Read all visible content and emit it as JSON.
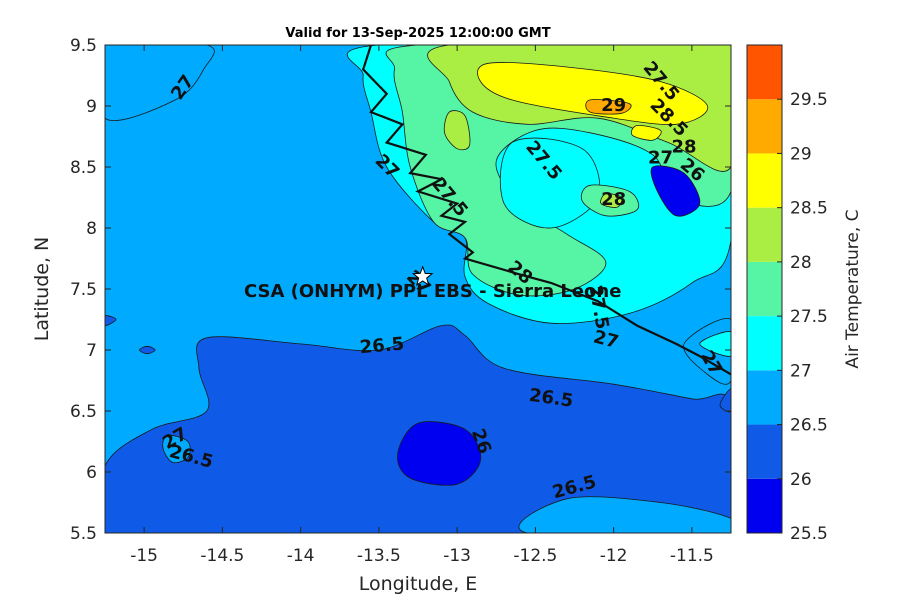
{
  "title": "Valid for 13-Sep-2025 12:00:00 GMT",
  "chart_data": {
    "type": "heatmap",
    "subtype": "filled-contour-map",
    "title": "Valid for 13-Sep-2025 12:00:00 GMT",
    "xlabel": "Longitude, E",
    "ylabel": "Latitude, N",
    "xlim": [
      -15.25,
      -11.25
    ],
    "ylim": [
      5.5,
      9.5
    ],
    "xticks": [
      -15,
      -14.5,
      -14,
      -13.5,
      -13,
      -12.5,
      -12,
      -11.5
    ],
    "yticks": [
      5.5,
      6,
      6.5,
      7,
      7.5,
      8,
      8.5,
      9,
      9.5
    ],
    "colorbar": {
      "label": "Air Temperature, C",
      "ticks": [
        25.5,
        26,
        26.5,
        27,
        27.5,
        28,
        28.5,
        29,
        29.5
      ],
      "colors": [
        "#0000f0",
        "#0f5ae6",
        "#00aaff",
        "#00ffff",
        "#55f5a5",
        "#aaee44",
        "#ffff00",
        "#ffaa00",
        "#ff5500"
      ]
    },
    "background_level": 26.75,
    "regions": [
      {
        "level": 26.25,
        "points": [
          [
            -14.6,
            7.1
          ],
          [
            -14.0,
            7.05
          ],
          [
            -13.5,
            7.0
          ],
          [
            -13.1,
            7.2
          ],
          [
            -12.95,
            7.12
          ],
          [
            -12.7,
            6.85
          ],
          [
            -12.0,
            6.72
          ],
          [
            -11.5,
            6.6
          ],
          [
            -11.25,
            6.55
          ],
          [
            -11.25,
            5.5
          ],
          [
            -15.25,
            5.5
          ],
          [
            -15.25,
            6.05
          ],
          [
            -14.95,
            6.35
          ],
          [
            -14.6,
            6.5
          ],
          [
            -14.65,
            6.85
          ]
        ]
      },
      {
        "level": 26.75,
        "points": [
          [
            -14.85,
            6.3
          ],
          [
            -14.72,
            6.25
          ],
          [
            -14.72,
            6.12
          ],
          [
            -14.82,
            6.08
          ],
          [
            -14.88,
            6.2
          ]
        ]
      },
      {
        "level": 25.75,
        "points": [
          [
            -13.25,
            6.4
          ],
          [
            -12.95,
            6.35
          ],
          [
            -12.85,
            6.1
          ],
          [
            -13.0,
            5.9
          ],
          [
            -13.3,
            5.95
          ],
          [
            -13.38,
            6.15
          ]
        ]
      },
      {
        "level": 26.75,
        "points": [
          [
            -12.55,
            5.5
          ],
          [
            -11.25,
            5.5
          ],
          [
            -11.25,
            5.62
          ],
          [
            -11.7,
            5.75
          ],
          [
            -12.3,
            5.78
          ]
        ]
      },
      {
        "level": 26.75,
        "points": [
          [
            -15.25,
            9.5
          ],
          [
            -14.6,
            9.5
          ],
          [
            -14.62,
            9.3
          ],
          [
            -14.8,
            9.05
          ],
          [
            -15.25,
            8.9
          ]
        ]
      },
      {
        "level": 27.25,
        "points": [
          [
            -13.5,
            9.5
          ],
          [
            -11.25,
            9.5
          ],
          [
            -11.25,
            7.9
          ],
          [
            -11.5,
            7.55
          ],
          [
            -11.9,
            7.3
          ],
          [
            -12.4,
            7.22
          ],
          [
            -12.8,
            7.38
          ],
          [
            -12.95,
            7.6
          ],
          [
            -12.95,
            7.92
          ],
          [
            -13.15,
            8.05
          ],
          [
            -13.45,
            8.5
          ],
          [
            -13.55,
            8.95
          ],
          [
            -13.6,
            9.25
          ]
        ]
      },
      {
        "level": 26.75,
        "points": [
          [
            -11.25,
            7.25
          ],
          [
            -11.55,
            7.05
          ],
          [
            -11.4,
            6.8
          ],
          [
            -11.25,
            6.75
          ]
        ]
      },
      {
        "level": 26.25,
        "points": [
          [
            -11.25,
            6.68
          ],
          [
            -11.32,
            6.55
          ],
          [
            -11.25,
            6.5
          ]
        ]
      },
      {
        "level": 27.75,
        "points": [
          [
            -13.25,
            9.5
          ],
          [
            -11.25,
            9.5
          ],
          [
            -11.25,
            8.3
          ],
          [
            -11.6,
            8.25
          ],
          [
            -11.75,
            8.6
          ],
          [
            -12.15,
            8.78
          ],
          [
            -12.5,
            8.8
          ],
          [
            -12.75,
            8.55
          ],
          [
            -12.6,
            8.2
          ],
          [
            -12.3,
            7.95
          ],
          [
            -12.05,
            7.72
          ],
          [
            -12.25,
            7.5
          ],
          [
            -12.6,
            7.45
          ],
          [
            -12.9,
            7.62
          ],
          [
            -12.95,
            7.92
          ],
          [
            -13.15,
            8.05
          ],
          [
            -13.3,
            8.5
          ],
          [
            -13.35,
            8.95
          ],
          [
            -13.4,
            9.3
          ]
        ]
      },
      {
        "level": 27.25,
        "points": [
          [
            -12.65,
            8.7
          ],
          [
            -12.2,
            8.65
          ],
          [
            -12.1,
            8.25
          ],
          [
            -12.4,
            8.0
          ],
          [
            -12.7,
            8.2
          ]
        ]
      },
      {
        "level": 28.25,
        "points": [
          [
            -13.05,
            9.5
          ],
          [
            -11.25,
            9.5
          ],
          [
            -11.25,
            8.5
          ],
          [
            -11.65,
            8.7
          ],
          [
            -12.1,
            8.9
          ],
          [
            -12.55,
            8.85
          ],
          [
            -12.9,
            8.95
          ],
          [
            -13.05,
            9.2
          ]
        ]
      },
      {
        "level": 27.75,
        "points": [
          [
            -12.15,
            8.35
          ],
          [
            -11.9,
            8.3
          ],
          [
            -11.85,
            8.15
          ],
          [
            -12.05,
            8.1
          ],
          [
            -12.2,
            8.22
          ]
        ]
      },
      {
        "level": 28.25,
        "points": [
          [
            -12.05,
            8.28
          ],
          [
            -11.95,
            8.25
          ],
          [
            -11.98,
            8.17
          ],
          [
            -12.08,
            8.2
          ]
        ]
      },
      {
        "level": 28.25,
        "points": [
          [
            -13.05,
            8.95
          ],
          [
            -12.95,
            8.92
          ],
          [
            -12.92,
            8.68
          ],
          [
            -13.0,
            8.65
          ],
          [
            -13.08,
            8.78
          ]
        ]
      },
      {
        "level": 28.75,
        "points": [
          [
            -12.8,
            9.35
          ],
          [
            -12.3,
            9.32
          ],
          [
            -11.7,
            9.2
          ],
          [
            -11.4,
            9.0
          ],
          [
            -11.6,
            8.85
          ],
          [
            -12.1,
            8.92
          ],
          [
            -12.65,
            9.05
          ],
          [
            -12.85,
            9.2
          ]
        ]
      },
      {
        "level": 29.25,
        "points": [
          [
            -12.15,
            9.05
          ],
          [
            -11.9,
            9.02
          ],
          [
            -11.95,
            8.94
          ],
          [
            -12.15,
            8.95
          ]
        ]
      },
      {
        "level": 28.75,
        "points": [
          [
            -11.85,
            8.84
          ],
          [
            -11.7,
            8.8
          ],
          [
            -11.75,
            8.72
          ],
          [
            -11.88,
            8.76
          ]
        ]
      },
      {
        "level": 25.75,
        "points": [
          [
            -11.75,
            8.5
          ],
          [
            -11.55,
            8.45
          ],
          [
            -11.45,
            8.2
          ],
          [
            -11.6,
            8.1
          ],
          [
            -11.72,
            8.3
          ]
        ]
      },
      {
        "level": 27.25,
        "points": [
          [
            -11.25,
            7.15
          ],
          [
            -11.45,
            7.05
          ],
          [
            -11.25,
            6.95
          ]
        ]
      },
      {
        "level": 26.25,
        "points": [
          [
            -15.25,
            7.28
          ],
          [
            -15.18,
            7.25
          ],
          [
            -15.25,
            7.2
          ]
        ]
      },
      {
        "level": 26.25,
        "points": [
          [
            -14.98,
            7.03
          ],
          [
            -14.93,
            7.0
          ],
          [
            -14.98,
            6.97
          ],
          [
            -15.03,
            7.0
          ]
        ]
      }
    ],
    "contour_labels": [
      {
        "lon": -14.75,
        "lat": 9.15,
        "text": "27",
        "angle": -55
      },
      {
        "lon": -14.8,
        "lat": 6.27,
        "text": "27",
        "angle": -30
      },
      {
        "lon": -14.7,
        "lat": 6.12,
        "text": "26.5",
        "angle": 15
      },
      {
        "lon": -13.48,
        "lat": 7.03,
        "text": "26.5",
        "angle": -5
      },
      {
        "lon": -12.4,
        "lat": 6.6,
        "text": "26.5",
        "angle": 8
      },
      {
        "lon": -12.25,
        "lat": 5.87,
        "text": "26.5",
        "angle": -15
      },
      {
        "lon": -12.85,
        "lat": 6.25,
        "text": "26",
        "angle": 70
      },
      {
        "lon": -13.25,
        "lat": 7.55,
        "text": "27",
        "angle": 45
      },
      {
        "lon": -12.0,
        "lat": 8.23,
        "text": "28",
        "angle": 0
      },
      {
        "lon": -12.45,
        "lat": 8.55,
        "text": "27.5",
        "angle": 50
      },
      {
        "lon": -12.0,
        "lat": 9.0,
        "text": "29",
        "angle": 0
      },
      {
        "lon": -11.7,
        "lat": 9.2,
        "text": "27.5",
        "angle": 50
      },
      {
        "lon": -11.65,
        "lat": 8.9,
        "text": "28.5",
        "angle": 45
      },
      {
        "lon": -11.55,
        "lat": 8.66,
        "text": "28",
        "angle": 0
      },
      {
        "lon": -11.7,
        "lat": 8.57,
        "text": "27",
        "angle": 0
      },
      {
        "lon": -11.5,
        "lat": 8.47,
        "text": "26",
        "angle": 40
      },
      {
        "lon": -12.6,
        "lat": 7.63,
        "text": "28",
        "angle": 40
      },
      {
        "lon": -12.1,
        "lat": 7.35,
        "text": "27.5",
        "angle": 80
      },
      {
        "lon": -12.05,
        "lat": 7.08,
        "text": "27",
        "angle": 15
      },
      {
        "lon": -11.38,
        "lat": 6.89,
        "text": "27",
        "angle": 60
      },
      {
        "lon": -13.05,
        "lat": 8.25,
        "text": "27.5",
        "angle": 50
      },
      {
        "lon": -13.45,
        "lat": 8.5,
        "text": "27",
        "angle": 45
      }
    ],
    "coastline": [
      [
        -13.55,
        9.5
      ],
      [
        -13.6,
        9.3
      ],
      [
        -13.45,
        9.1
      ],
      [
        -13.55,
        8.95
      ],
      [
        -13.35,
        8.85
      ],
      [
        -13.45,
        8.7
      ],
      [
        -13.2,
        8.6
      ],
      [
        -13.3,
        8.45
      ],
      [
        -13.1,
        8.4
      ],
      [
        -13.25,
        8.3
      ],
      [
        -13.0,
        8.2
      ],
      [
        -13.1,
        8.1
      ],
      [
        -12.95,
        8.05
      ],
      [
        -13.05,
        7.95
      ],
      [
        -12.9,
        7.8
      ],
      [
        -12.95,
        7.75
      ],
      [
        -12.6,
        7.62
      ],
      [
        -12.4,
        7.55
      ],
      [
        -12.1,
        7.4
      ],
      [
        -11.85,
        7.2
      ],
      [
        -11.6,
        7.05
      ],
      [
        -11.45,
        6.95
      ],
      [
        -11.25,
        6.8
      ]
    ],
    "station": {
      "name": "CSA (ONHYM) PPL EBS - Sierra Leone",
      "lon": -13.22,
      "lat": 7.6
    }
  }
}
